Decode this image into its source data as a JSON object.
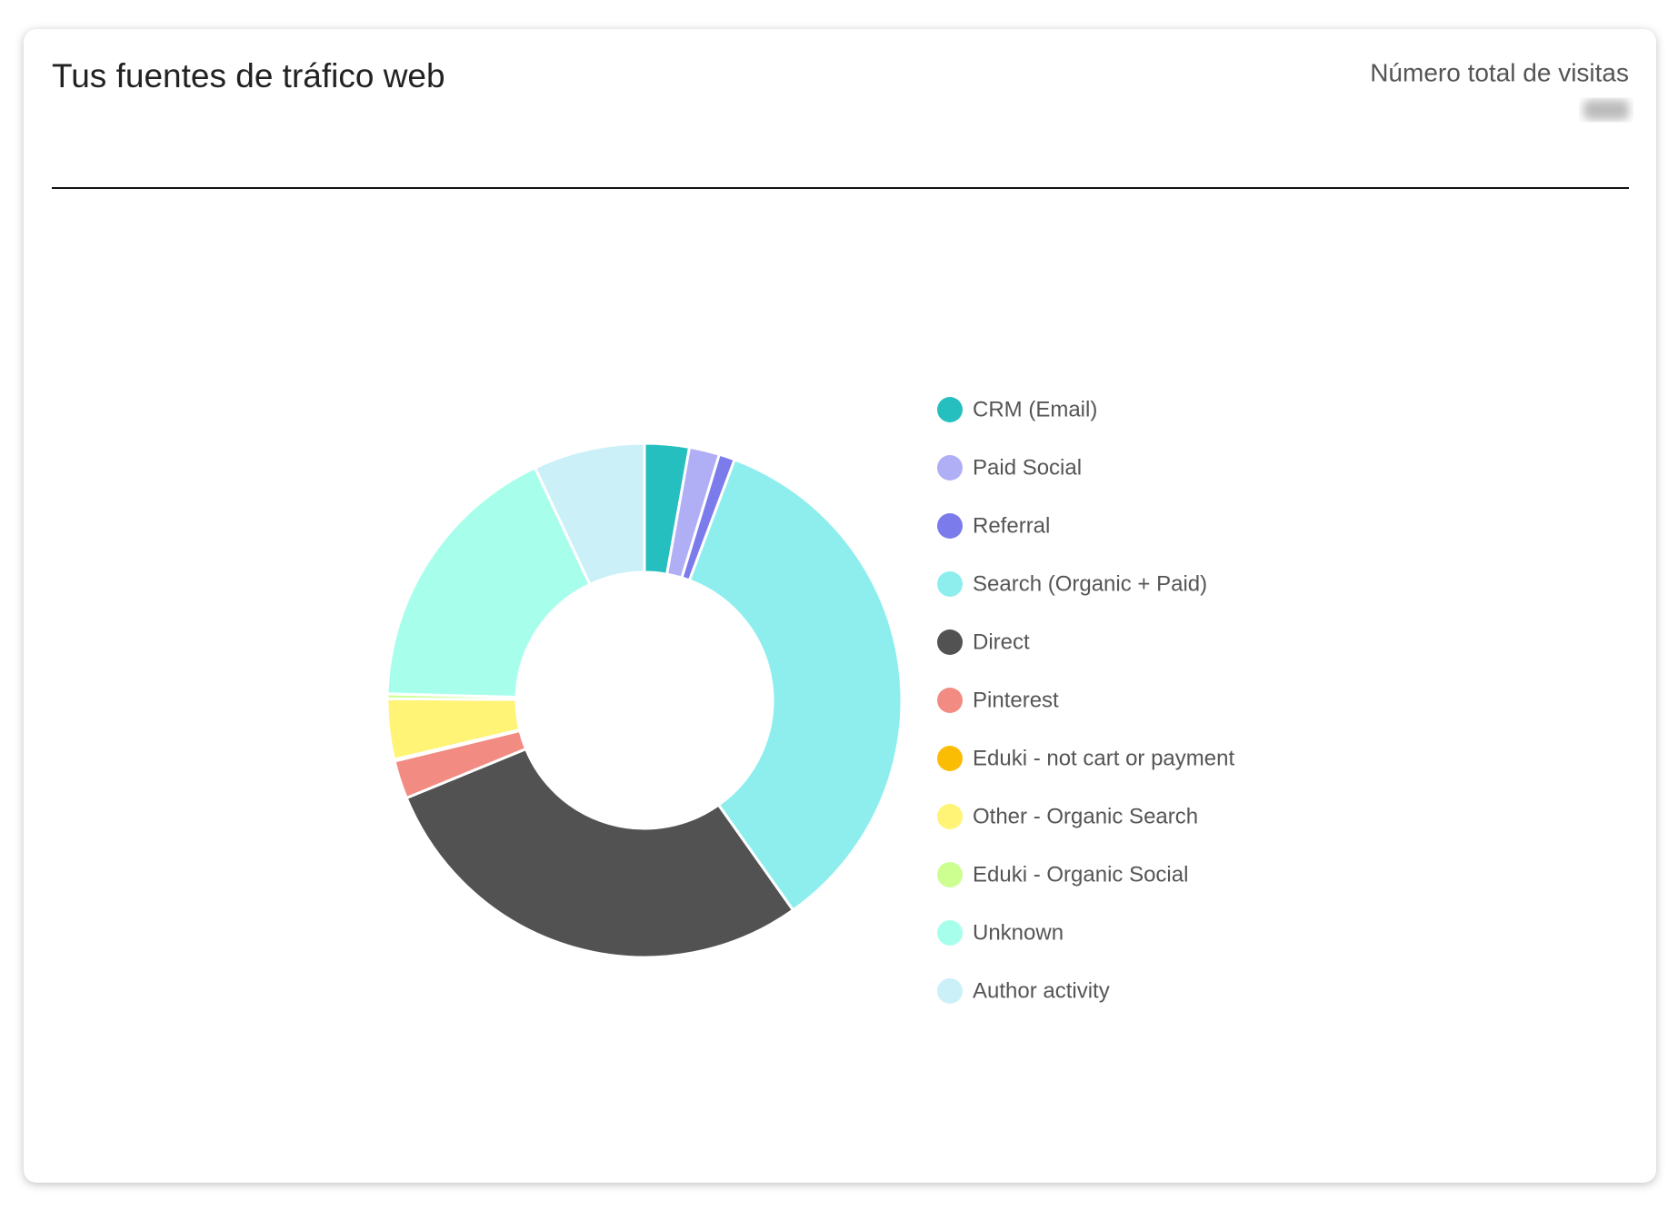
{
  "chart_data": {
    "type": "doughnut",
    "title": "Tus fuentes de tráfico web",
    "subtitle": "Número total de visitas",
    "categories": [
      "CRM (Email)",
      "Paid Social",
      "Referral",
      "Search (Organic + Paid)",
      "Direct",
      "Pinterest",
      "Eduki - not cart or payment",
      "Other - Organic Search",
      "Eduki - Organic Social",
      "Unknown",
      "Author activity"
    ],
    "values": [
      2.8,
      1.9,
      1.0,
      34.5,
      28.6,
      2.4,
      0.1,
      3.8,
      0.3,
      17.6,
      7.0
    ],
    "colors": [
      "#26bfbf",
      "#b0aef5",
      "#7b7bec",
      "#8eeeee",
      "#525252",
      "#f28b82",
      "#fbbc04",
      "#fff475",
      "#ccff90",
      "#a7ffeb",
      "#cbf0f8"
    ],
    "legend": "right"
  }
}
